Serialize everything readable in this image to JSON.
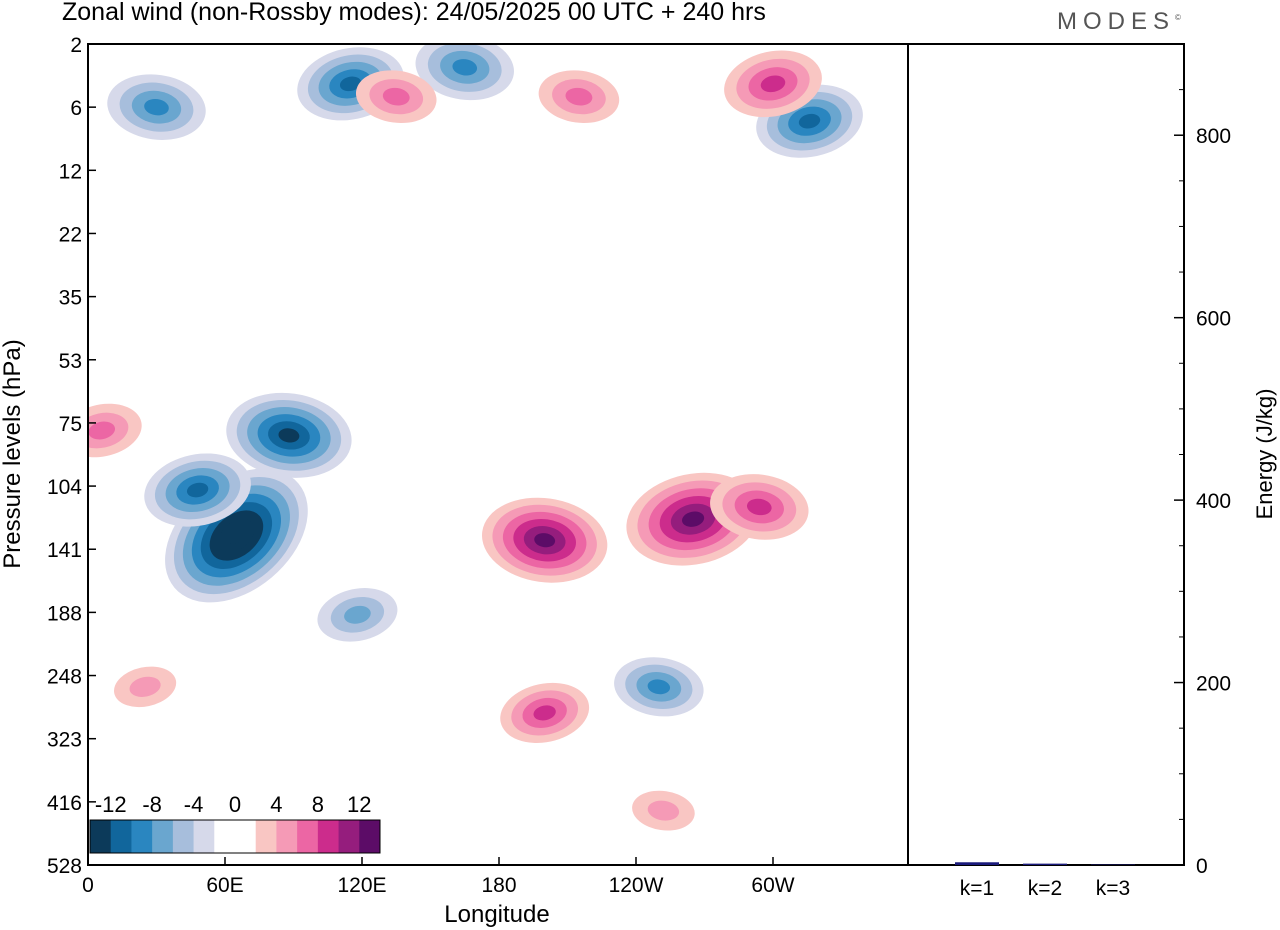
{
  "title": "Zonal wind (non-Rossby modes):  24/05/2025  00 UTC  + 240 hrs",
  "logo": "MODES",
  "logo_mark": "©",
  "chart_data": [
    {
      "type": "heatmap",
      "title": "Zonal wind (non-Rossby modes):  24/05/2025  00 UTC  + 240 hrs",
      "xlabel": "Longitude",
      "ylabel": "Pressure levels (hPa)",
      "x_ticks": [
        "0",
        "60E",
        "120E",
        "180",
        "120W",
        "60W"
      ],
      "y_ticks": [
        "2",
        "6",
        "12",
        "22",
        "35",
        "53",
        "75",
        "104",
        "141",
        "188",
        "248",
        "323",
        "416",
        "528"
      ],
      "xlim": [
        0,
        360
      ],
      "y_levels": [
        2,
        6,
        12,
        22,
        35,
        53,
        75,
        104,
        141,
        188,
        248,
        323,
        416,
        528
      ],
      "colorbar": {
        "tick_labels": [
          "-12",
          "-8",
          "-4",
          "0",
          "4",
          "8",
          "12"
        ],
        "colors": [
          "#0c3a5a",
          "#11669c",
          "#2a86c0",
          "#6aa6cf",
          "#a7bedc",
          "#d6d9ea",
          "#ffffff",
          "#ffffff",
          "#f9c6c3",
          "#f59ab6",
          "#ec66a4",
          "#cc2c8c",
          "#951d7d",
          "#5c0c67"
        ]
      },
      "features": [
        {
          "lon": 65,
          "level": 132,
          "value": -14
        },
        {
          "lon": 48,
          "level": 106,
          "value": -8
        },
        {
          "lon": 88,
          "level": 80,
          "value": -10
        },
        {
          "lon": 118,
          "level": 190,
          "value": -5
        },
        {
          "lon": 30,
          "level": 6,
          "value": -7
        },
        {
          "lon": 115,
          "level": 4,
          "value": -8
        },
        {
          "lon": 165,
          "level": 3,
          "value": -7
        },
        {
          "lon": 316,
          "level": 7,
          "value": -8
        },
        {
          "lon": 250,
          "level": 260,
          "value": -6
        },
        {
          "lon": 6,
          "level": 78,
          "value": 5
        },
        {
          "lon": 200,
          "level": 135,
          "value": 10
        },
        {
          "lon": 265,
          "level": 122,
          "value": 11
        },
        {
          "lon": 294,
          "level": 115,
          "value": 7
        },
        {
          "lon": 300,
          "level": 4,
          "value": 7
        },
        {
          "lon": 215,
          "level": 5,
          "value": 5
        },
        {
          "lon": 200,
          "level": 290,
          "value": 6
        },
        {
          "lon": 135,
          "level": 5,
          "value": 5
        },
        {
          "lon": 25,
          "level": 260,
          "value": 3
        },
        {
          "lon": 252,
          "level": 430,
          "value": 3
        }
      ]
    },
    {
      "type": "bar",
      "categories": [
        "k=1",
        "k=2",
        "k=3"
      ],
      "values": [
        3,
        1.5,
        0.5
      ],
      "ylabel": "Energy (J/kg)",
      "y_ticks": [
        "0",
        "200",
        "400",
        "600",
        "800"
      ],
      "ylim": [
        0,
        900
      ],
      "bar_color": "#1a1a7a"
    }
  ]
}
